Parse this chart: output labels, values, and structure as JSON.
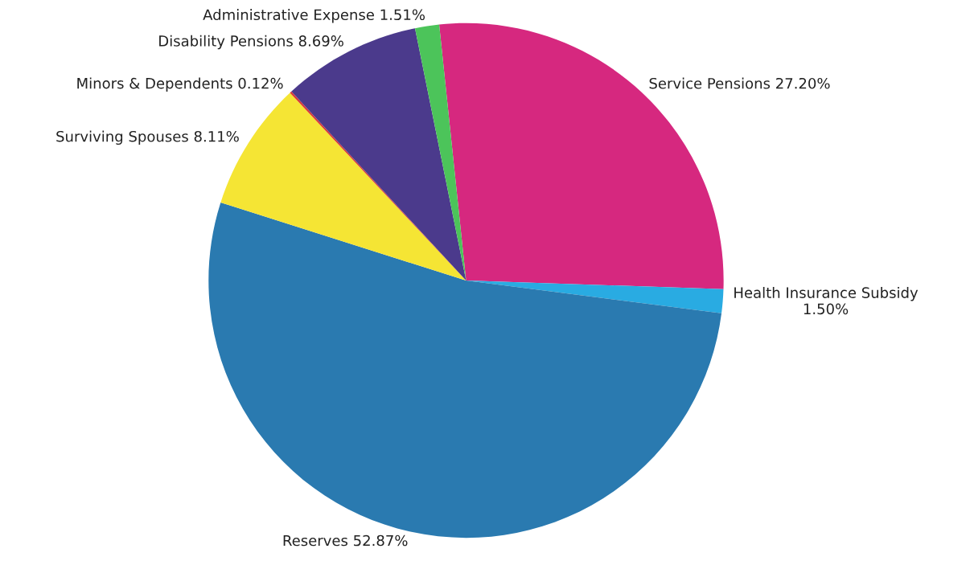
{
  "chart_data": {
    "type": "pie",
    "categories": [
      "Service Pensions",
      "Health Insurance Subsidy",
      "Reserves",
      "Surviving Spouses",
      "Minors & Dependents",
      "Disability Pensions",
      "Administrative Expense"
    ],
    "values": [
      27.2,
      1.5,
      52.87,
      8.11,
      0.12,
      8.69,
      1.51
    ],
    "value_labels": [
      "27.20%",
      "1.50%",
      "52.87%",
      "8.11%",
      "0.12%",
      "8.69%",
      "1.51%"
    ],
    "colors": [
      "#d6287f",
      "#29abe2",
      "#2a7ab0",
      "#f5e534",
      "#d93a3a",
      "#4b3a8c",
      "#4cc45a"
    ]
  }
}
